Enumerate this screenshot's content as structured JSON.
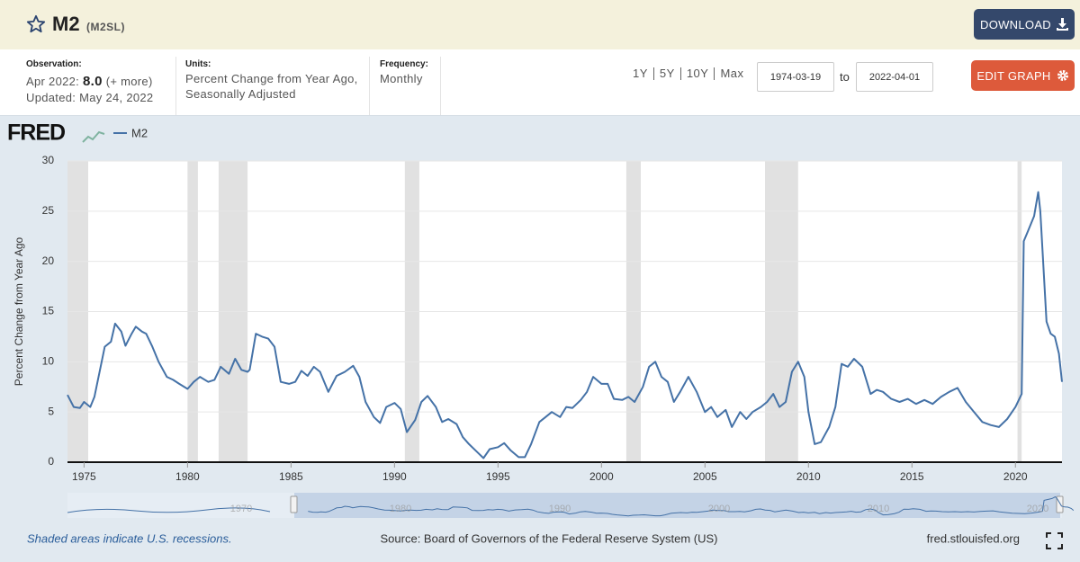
{
  "header": {
    "title": "M2",
    "series_id": "(M2SL)",
    "download": "DOWNLOAD"
  },
  "info": {
    "observation_label": "Observation:",
    "observation_date": "Apr 2022:",
    "observation_value": "8.0",
    "more": "(+ more)",
    "updated": "Updated: May 24, 2022",
    "units_label": "Units:",
    "units": "Percent Change from Year Ago, Seasonally Adjusted",
    "frequency_label": "Frequency:",
    "frequency": "Monthly"
  },
  "controls": {
    "ranges": [
      "1Y",
      "5Y",
      "10Y",
      "Max"
    ],
    "start_date": "1974-03-19",
    "to": "to",
    "end_date": "2022-04-01",
    "edit": "EDIT GRAPH"
  },
  "logo": "FRED",
  "chart_data": {
    "type": "line",
    "ylabel": "Percent Change from Year Ago",
    "x": [
      1974.2,
      1974.5,
      1974.8,
      1975.0,
      1975.3,
      1975.5,
      1975.8,
      1976.0,
      1976.3,
      1976.5,
      1976.8,
      1977.0,
      1977.3,
      1977.5,
      1977.8,
      1978.0,
      1978.3,
      1978.6,
      1979.0,
      1979.3,
      1979.6,
      1980.0,
      1980.3,
      1980.6,
      1981.0,
      1981.3,
      1981.6,
      1982.0,
      1982.3,
      1982.6,
      1982.9,
      1983.0,
      1983.3,
      1983.6,
      1983.9,
      1984.2,
      1984.5,
      1984.9,
      1985.2,
      1985.5,
      1985.8,
      1986.1,
      1986.4,
      1986.8,
      1987.2,
      1987.6,
      1988.0,
      1988.3,
      1988.6,
      1989.0,
      1989.3,
      1989.6,
      1990.0,
      1990.3,
      1990.6,
      1991.0,
      1991.3,
      1991.6,
      1992.0,
      1992.3,
      1992.6,
      1993.0,
      1993.3,
      1993.6,
      1994.0,
      1994.3,
      1994.6,
      1995.0,
      1995.3,
      1995.6,
      1996.0,
      1996.3,
      1996.6,
      1997.0,
      1997.3,
      1997.6,
      1998.0,
      1998.3,
      1998.6,
      1999.0,
      1999.3,
      1999.6,
      2000.0,
      2000.3,
      2000.6,
      2001.0,
      2001.3,
      2001.6,
      2002.0,
      2002.3,
      2002.6,
      2002.9,
      2003.2,
      2003.5,
      2003.8,
      2004.2,
      2004.6,
      2005.0,
      2005.3,
      2005.6,
      2006.0,
      2006.3,
      2006.7,
      2007.0,
      2007.3,
      2007.7,
      2008.0,
      2008.3,
      2008.6,
      2008.9,
      2009.2,
      2009.5,
      2009.8,
      2010.0,
      2010.3,
      2010.6,
      2011.0,
      2011.3,
      2011.6,
      2011.9,
      2012.2,
      2012.6,
      2013.0,
      2013.3,
      2013.6,
      2014.0,
      2014.4,
      2014.8,
      2015.2,
      2015.6,
      2016.0,
      2016.4,
      2016.8,
      2017.2,
      2017.6,
      2018.0,
      2018.4,
      2018.8,
      2019.2,
      2019.6,
      2020.0,
      2020.3,
      2020.4,
      2020.6,
      2020.9,
      2021.1,
      2021.2,
      2021.5,
      2021.7,
      2021.9,
      2022.1,
      2022.25
    ],
    "series": [
      {
        "name": "M2",
        "color": "#4572a7",
        "values": [
          6.7,
          5.5,
          5.4,
          6.0,
          5.5,
          6.5,
          9.5,
          11.5,
          12.0,
          13.8,
          13.0,
          11.6,
          12.8,
          13.5,
          13.0,
          12.8,
          11.5,
          10.0,
          8.5,
          8.2,
          7.8,
          7.3,
          8.0,
          8.5,
          8.0,
          8.2,
          9.5,
          8.8,
          10.3,
          9.2,
          9.0,
          9.2,
          12.8,
          12.5,
          12.3,
          11.5,
          8.0,
          7.8,
          8.0,
          9.1,
          8.6,
          9.5,
          9.0,
          7.0,
          8.6,
          9.0,
          9.6,
          8.5,
          6.0,
          4.5,
          3.9,
          5.5,
          5.9,
          5.3,
          3.0,
          4.2,
          6.0,
          6.6,
          5.5,
          4.0,
          4.3,
          3.8,
          2.5,
          1.8,
          1.0,
          0.4,
          1.3,
          1.5,
          1.9,
          1.2,
          0.5,
          0.5,
          1.8,
          4.0,
          4.5,
          5.0,
          4.5,
          5.5,
          5.4,
          6.2,
          7.0,
          8.5,
          7.8,
          7.8,
          6.3,
          6.2,
          6.5,
          6.0,
          7.5,
          9.5,
          10.0,
          8.5,
          8.0,
          6.0,
          7.0,
          8.5,
          7.0,
          5.0,
          5.5,
          4.5,
          5.2,
          3.5,
          5.0,
          4.3,
          5.0,
          5.5,
          6.0,
          6.8,
          5.5,
          6.0,
          9.0,
          10.0,
          8.5,
          5.0,
          1.8,
          2.0,
          3.5,
          5.5,
          9.8,
          9.5,
          10.3,
          9.5,
          6.8,
          7.2,
          7.0,
          6.3,
          6.0,
          6.3,
          5.8,
          6.2,
          5.8,
          6.5,
          7.0,
          7.4,
          6.0,
          5.0,
          4.0,
          3.7,
          3.5,
          4.3,
          5.5,
          6.8,
          22.0,
          23.0,
          24.5,
          26.9,
          25.0,
          14.0,
          12.8,
          12.5,
          10.8,
          8.0
        ]
      }
    ],
    "xlim": [
      1974.2,
      2022.25
    ],
    "xticks": [
      1975,
      1980,
      1985,
      1990,
      1995,
      2000,
      2005,
      2010,
      2015,
      2020
    ],
    "ylim": [
      0,
      30
    ],
    "yticks": [
      0,
      5,
      10,
      15,
      20,
      25,
      30
    ],
    "grid": true,
    "recessions": [
      [
        1974.2,
        1975.2
      ],
      [
        1980.0,
        1980.5
      ],
      [
        1981.5,
        1982.9
      ],
      [
        1990.5,
        1991.2
      ],
      [
        2001.2,
        2001.9
      ],
      [
        2007.9,
        2009.5
      ],
      [
        2020.1,
        2020.3
      ]
    ],
    "navigator_ticks": [
      1970,
      1980,
      1990,
      2000,
      2010,
      2020
    ]
  },
  "footer": {
    "note": "Shaded areas indicate U.S. recessions.",
    "source": "Source: Board of Governors of the Federal Reserve System (US)",
    "site": "fred.stlouisfed.org"
  }
}
